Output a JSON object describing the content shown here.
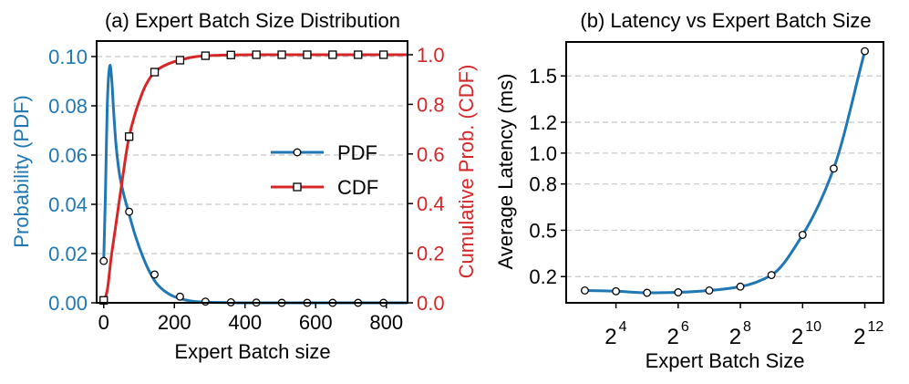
{
  "colors": {
    "pdf": "#1f77b4",
    "cdf": "#d62728",
    "latency": "#1f77b4",
    "axis": "#000000",
    "grid": "#c8c8c8"
  },
  "chart_data": [
    {
      "type": "line",
      "title": "(a) Expert Batch Size Distribution",
      "xlabel": "Expert Batch size",
      "ylabel_left": "Probability (PDF)",
      "ylabel_right": "Cumulative Prob. (CDF)",
      "xlim": [
        -20,
        860
      ],
      "ylim_left": [
        0,
        0.1
      ],
      "ylim_right": [
        0,
        1.0
      ],
      "x_ticks": [
        0,
        200,
        400,
        600,
        800
      ],
      "x_tick_labels": [
        "0",
        "200",
        "400",
        "600",
        "800"
      ],
      "y_left_ticks": [
        0,
        0.02,
        0.04,
        0.06,
        0.08,
        0.1
      ],
      "y_left_tick_labels": [
        "0.00",
        "0.02",
        "0.04",
        "0.06",
        "0.08",
        "0.10"
      ],
      "y_right_ticks": [
        0,
        0.2,
        0.4,
        0.6,
        0.8,
        1.0
      ],
      "y_right_tick_labels": [
        "0.0",
        "0.2",
        "0.4",
        "0.6",
        "0.8",
        "1.0"
      ],
      "grid": "horizontal dashed",
      "legend": {
        "placement": "center-right",
        "entries": [
          "PDF",
          "CDF"
        ]
      },
      "series": [
        {
          "name": "PDF",
          "axis": "left",
          "marker": "circle",
          "curve_x": [
            0,
            5,
            10,
            15,
            18,
            22,
            28,
            35,
            45,
            55,
            70,
            90,
            110,
            130,
            150,
            175,
            200,
            230,
            260,
            300,
            350,
            400,
            500,
            600,
            700,
            800,
            860
          ],
          "curve_y": [
            0.017,
            0.045,
            0.08,
            0.094,
            0.0965,
            0.092,
            0.078,
            0.064,
            0.052,
            0.045,
            0.037,
            0.027,
            0.019,
            0.0125,
            0.0078,
            0.0045,
            0.0025,
            0.0012,
            0.0005,
            0.0002,
            0.0001,
            0,
            0,
            0,
            0,
            0,
            0
          ],
          "marker_x": [
            0,
            72,
            144,
            216,
            288,
            360,
            432,
            504,
            576,
            648,
            720,
            792
          ],
          "marker_y": [
            0.017,
            0.037,
            0.0115,
            0.0025,
            0.0005,
            0.0002,
            0.0001,
            0,
            0,
            0,
            0,
            0
          ]
        },
        {
          "name": "CDF",
          "axis": "right",
          "marker": "square",
          "curve_x": [
            0,
            10,
            20,
            35,
            50,
            72,
            100,
            120,
            144,
            170,
            200,
            216,
            250,
            288,
            330,
            360,
            432,
            504,
            576,
            648,
            720,
            792,
            860
          ],
          "curve_y": [
            0.0,
            0.05,
            0.17,
            0.32,
            0.47,
            0.67,
            0.81,
            0.88,
            0.93,
            0.955,
            0.972,
            0.978,
            0.99,
            0.996,
            0.998,
            0.999,
            1.0,
            1.0,
            1.0,
            1.0,
            1.0,
            1.0,
            1.0
          ],
          "marker_x": [
            0,
            72,
            144,
            216,
            288,
            360,
            432,
            504,
            576,
            648,
            720,
            792
          ],
          "marker_y": [
            0.01,
            0.67,
            0.93,
            0.978,
            0.996,
            0.999,
            1.0,
            1.0,
            1.0,
            1.0,
            1.0,
            1.0
          ]
        }
      ]
    },
    {
      "type": "line",
      "title": "(b) Latency vs Expert Batch Size",
      "xlabel": "Expert Batch Size",
      "ylabel": "Average Latency (ms)",
      "xscale": "log2",
      "xlim_exponent": [
        2.4,
        12.6
      ],
      "ylim": [
        0.03,
        1.72
      ],
      "x_tick_bases": [
        "2",
        "2",
        "2",
        "2",
        "2"
      ],
      "x_tick_exponents": [
        "4",
        "6",
        "8",
        "10",
        "12"
      ],
      "y_ticks": [
        0.2,
        0.5,
        0.8,
        1.0,
        1.2,
        1.5
      ],
      "y_tick_labels": [
        "0.2",
        "0.5",
        "0.8",
        "1.0",
        "1.2",
        "1.5"
      ],
      "grid": "horizontal dashed",
      "series": [
        {
          "name": "Latency",
          "marker": "circle",
          "x_exponent": [
            3,
            4,
            5,
            6,
            7,
            8,
            9,
            10,
            11,
            12
          ],
          "y": [
            0.11,
            0.105,
            0.095,
            0.098,
            0.11,
            0.135,
            0.21,
            0.47,
            0.9,
            1.66
          ]
        }
      ]
    }
  ]
}
